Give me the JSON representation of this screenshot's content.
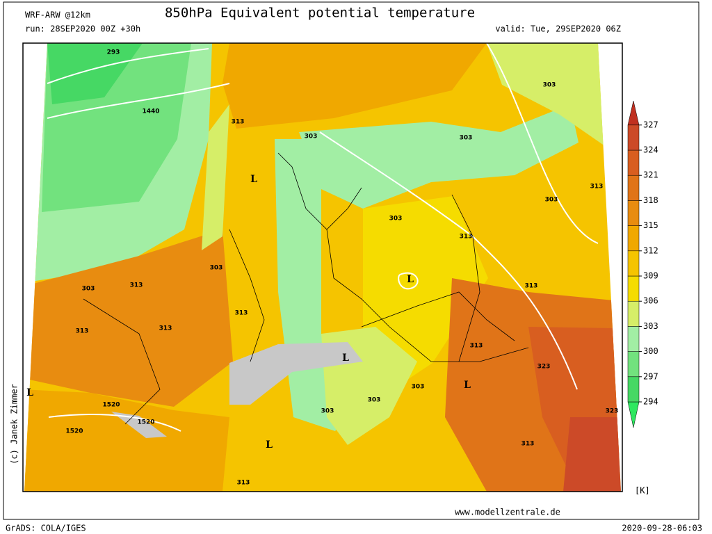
{
  "header": {
    "model": "WRF-ARW @12km",
    "title": "850hPa Equivalent potential temperature",
    "run": "run: 28SEP2020 00Z +30h",
    "valid": "valid: Tue, 29SEP2020 06Z"
  },
  "colorbar": {
    "levels": [
      294,
      297,
      300,
      303,
      306,
      309,
      312,
      315,
      318,
      321,
      324,
      327
    ],
    "unit": "[K]",
    "colors": [
      "#2ee860",
      "#46d864",
      "#72e27e",
      "#a2eea4",
      "#d6ee68",
      "#f5dc00",
      "#f5c400",
      "#f0a800",
      "#e88c10",
      "#e07418",
      "#d85e20",
      "#cc4a28",
      "#c03020"
    ]
  },
  "map_labels": [
    "293",
    "1440",
    "313",
    "L",
    "303",
    "303",
    "303",
    "313",
    "303",
    "303",
    "313",
    "303",
    "303",
    "313",
    "L",
    "313",
    "313",
    "313",
    "313",
    "313",
    "L",
    "323",
    "L",
    "1520",
    "303",
    "L",
    "303",
    "1520",
    "1520",
    "303",
    "323",
    "313",
    "L",
    "313"
  ],
  "footer": {
    "credit": "(c) Janek Zimmer",
    "url": "www.modellzentrale.de",
    "software": "GrADS: COLA/IGES",
    "timestamp": "2020-09-28-06:03"
  }
}
